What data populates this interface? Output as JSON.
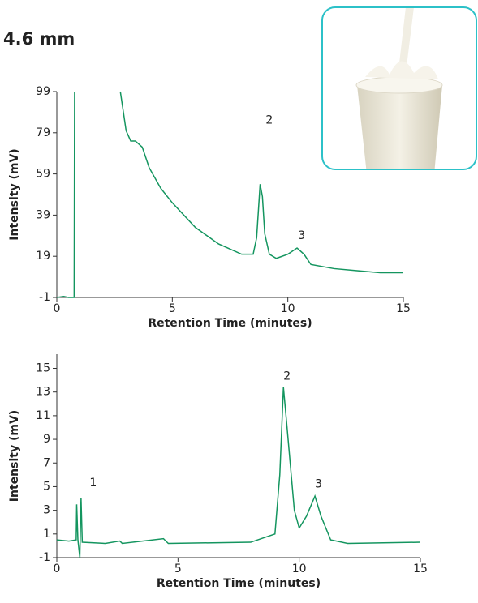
{
  "header": {
    "title": "4.6 mm"
  },
  "chart_data": [
    {
      "type": "line",
      "color": "#14955f",
      "x": [
        0,
        0.3,
        0.5,
        0.75,
        0.77,
        2.75,
        2.75,
        3.0,
        3.2,
        3.4,
        3.7,
        4.0,
        4.5,
        5.0,
        6.0,
        7.0,
        8.0,
        8.5,
        8.65,
        8.8,
        8.9,
        9.0,
        9.2,
        9.5,
        10.0,
        10.4,
        10.7,
        11.0,
        12.0,
        13.0,
        14.0,
        15.0
      ],
      "values": [
        -1,
        -0.5,
        -1,
        -1,
        99,
        null,
        99,
        80,
        75,
        75,
        72,
        62,
        52,
        45,
        33,
        25,
        20,
        20,
        28,
        54,
        48,
        30,
        20,
        18,
        20,
        23,
        20,
        15,
        13,
        12,
        11,
        11
      ],
      "xlim": [
        0,
        15
      ],
      "ylim": [
        -1,
        99
      ],
      "xticks": [
        0,
        5,
        10,
        15
      ],
      "yticks": [
        -1,
        19,
        39,
        59,
        79,
        99
      ],
      "xlabel": "Retention Time (minutes)",
      "ylabel": "Intensity (mV)",
      "annotations": [
        {
          "text": "2",
          "x": 9.2,
          "y": 85
        },
        {
          "text": "3",
          "x": 10.6,
          "y": 29
        }
      ]
    },
    {
      "type": "line",
      "color": "#14955f",
      "x": [
        0,
        0.5,
        0.8,
        0.82,
        0.87,
        0.95,
        1.0,
        1.05,
        2.0,
        2.6,
        2.7,
        4.4,
        4.6,
        8.0,
        9.0,
        9.2,
        9.35,
        9.5,
        9.8,
        10.0,
        10.3,
        10.65,
        10.9,
        11.3,
        12.0,
        15.0
      ],
      "values": [
        0.5,
        0.4,
        0.5,
        3.5,
        0.5,
        -1,
        4,
        0.3,
        0.2,
        0.4,
        0.2,
        0.6,
        0.2,
        0.3,
        1,
        6,
        13.4,
        10,
        3,
        1.5,
        2.5,
        4.2,
        2.5,
        0.5,
        0.2,
        0.3
      ],
      "xlim": [
        0,
        15
      ],
      "ylim": [
        -1,
        16.2
      ],
      "xticks": [
        0,
        5,
        10,
        15
      ],
      "yticks": [
        -1,
        1,
        3,
        5,
        7,
        9,
        11,
        13,
        15
      ],
      "xlabel": "Retention Time (minutes)",
      "ylabel": "Intensity (mV)",
      "annotations": [
        {
          "text": "1",
          "x": 1.5,
          "y": 5.3
        },
        {
          "text": "2",
          "x": 9.5,
          "y": 14.3
        },
        {
          "text": "3",
          "x": 10.8,
          "y": 5.2
        }
      ]
    }
  ]
}
